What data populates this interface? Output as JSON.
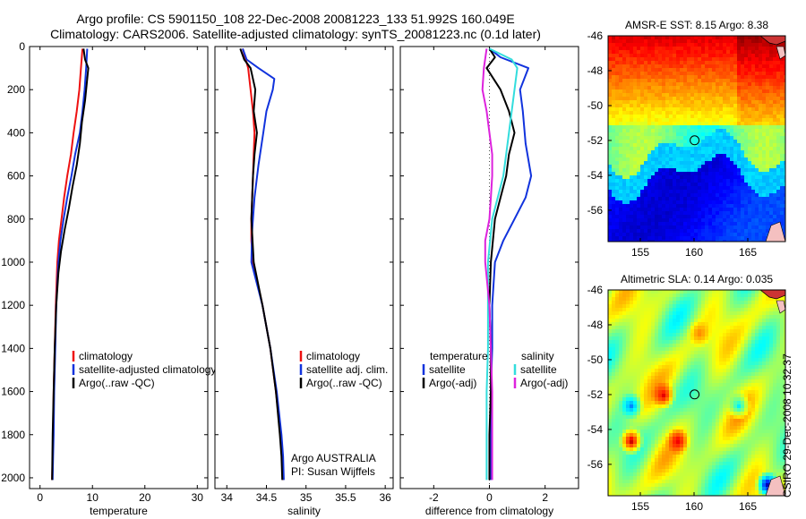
{
  "header": {
    "line1": "Argo profile: CS 5901150_108 22-Dec-2008 20081223_133 51.992S 160.049E",
    "line2": "Climatology: CARS2006. Satellite-adjusted climatology: synTS_20081223.nc (0.1d later)"
  },
  "credit": "CSIRO 29-Dec-2008 10:32:37",
  "colors": {
    "climatology": "#ee1111",
    "satellite": "#1133dd",
    "argo": "#000000",
    "salinity_satellite": "#33dddd",
    "salinity_argo": "#dd22dd"
  },
  "y_axis": {
    "range": [
      0,
      2050
    ],
    "ticks": [
      "0",
      "200",
      "400",
      "600",
      "800",
      "1000",
      "1200",
      "1400",
      "1600",
      "1800",
      "2000"
    ],
    "reversed": true
  },
  "chart_data": [
    {
      "type": "line",
      "id": "temperature",
      "xlabel": "temperature",
      "xlim": [
        -2,
        32
      ],
      "xticks": [
        {
          "v": 0,
          "label": "0"
        },
        {
          "v": 10,
          "label": "10"
        },
        {
          "v": 20,
          "label": "20"
        },
        {
          "v": 30,
          "label": "30"
        }
      ],
      "legend": [
        "climatology",
        "satellite-adjusted climatology",
        "Argo(..raw -QC)"
      ],
      "series": [
        {
          "name": "climatology",
          "color": "#ee1111",
          "x": [
            8.1,
            7.8,
            7.5,
            7.0,
            6.4,
            5.9,
            5.2,
            4.6,
            4.1,
            3.6,
            3.3,
            3.0,
            2.8,
            2.6,
            2.5,
            2.4,
            2.3,
            2.3
          ],
          "y": [
            10,
            100,
            200,
            300,
            400,
            500,
            600,
            700,
            800,
            900,
            1000,
            1200,
            1400,
            1600,
            1800,
            1900,
            2000,
            2010
          ]
        },
        {
          "name": "satellite-adjusted climatology",
          "color": "#1133dd",
          "x": [
            9.0,
            8.8,
            8.5,
            8.1,
            7.6,
            6.7,
            6.0,
            5.2,
            4.5,
            3.9,
            3.5,
            3.1,
            2.9,
            2.7,
            2.6,
            2.5,
            2.4,
            2.4
          ],
          "y": [
            10,
            100,
            200,
            300,
            400,
            500,
            600,
            700,
            800,
            900,
            1000,
            1200,
            1400,
            1600,
            1800,
            1900,
            2000,
            2010
          ]
        },
        {
          "name": "Argo(..raw -QC)",
          "color": "#000000",
          "x": [
            8.3,
            8.6,
            9.2,
            9.0,
            8.6,
            8.0,
            7.6,
            7.0,
            6.2,
            5.5,
            4.7,
            4.0,
            3.5,
            3.1,
            2.8,
            2.6,
            2.4,
            2.3,
            2.3
          ],
          "y": [
            10,
            60,
            100,
            150,
            250,
            350,
            450,
            550,
            650,
            750,
            850,
            950,
            1050,
            1200,
            1400,
            1600,
            1800,
            2000,
            2010
          ]
        }
      ]
    },
    {
      "type": "line",
      "id": "salinity",
      "xlabel": "salinity",
      "xlim": [
        33.85,
        36.1
      ],
      "xticks": [
        {
          "v": 34,
          "label": "34"
        },
        {
          "v": 34.5,
          "label": "34.5"
        },
        {
          "v": 35,
          "label": "35"
        },
        {
          "v": 35.5,
          "label": "35.5"
        },
        {
          "v": 36,
          "label": "36"
        }
      ],
      "legend": [
        "climatology",
        "satellite adj. clim.",
        "Argo(..raw -QC)"
      ],
      "annotation": [
        "Argo AUSTRALIA",
        "PI: Susan Wijffels"
      ],
      "series": [
        {
          "name": "climatology",
          "color": "#ee1111",
          "x": [
            34.2,
            34.27,
            34.3,
            34.33,
            34.35,
            34.34,
            34.33,
            34.32,
            34.31,
            34.31,
            34.33,
            34.45,
            34.55,
            34.62,
            34.68,
            34.7,
            34.71
          ],
          "y": [
            10,
            100,
            200,
            300,
            400,
            500,
            600,
            700,
            800,
            900,
            1000,
            1200,
            1400,
            1600,
            1800,
            1900,
            2010
          ]
        },
        {
          "name": "satellite adj. clim.",
          "color": "#1133dd",
          "x": [
            34.2,
            34.25,
            34.4,
            34.6,
            34.58,
            34.5,
            34.46,
            34.4,
            34.35,
            34.32,
            34.31,
            34.45,
            34.55,
            34.63,
            34.69,
            34.71,
            34.72
          ],
          "y": [
            10,
            60,
            100,
            150,
            200,
            300,
            400,
            550,
            700,
            850,
            1000,
            1200,
            1400,
            1600,
            1800,
            1900,
            2010
          ]
        },
        {
          "name": "Argo(..raw -QC)",
          "color": "#000000",
          "x": [
            34.17,
            34.22,
            34.3,
            34.36,
            34.34,
            34.38,
            34.35,
            34.33,
            34.32,
            34.31,
            34.34,
            34.45,
            34.55,
            34.62,
            34.67,
            34.69,
            34.7
          ],
          "y": [
            10,
            60,
            100,
            200,
            300,
            400,
            500,
            600,
            700,
            800,
            1000,
            1200,
            1400,
            1600,
            1800,
            1900,
            2010
          ]
        }
      ]
    },
    {
      "type": "line",
      "id": "difference",
      "xlabel": "difference from climatology",
      "xlim": [
        -3.2,
        3.2
      ],
      "xticks": [
        {
          "v": -2,
          "label": "-2"
        },
        {
          "v": 0,
          "label": "0"
        },
        {
          "v": 2,
          "label": "2"
        }
      ],
      "legend_headers": [
        "temperature",
        "salinity"
      ],
      "legend": [
        "satellite",
        "Argo(-adj)",
        "satellite",
        "Argo(-adj)"
      ],
      "series": [
        {
          "name": "temperature satellite",
          "color": "#1133dd",
          "x": [
            0.0,
            0.4,
            1.4,
            1.1,
            1.2,
            1.3,
            1.5,
            1.3,
            0.9,
            0.5,
            0.2,
            0.1,
            0.1,
            0.05,
            0.05,
            0.05
          ],
          "y": [
            10,
            50,
            100,
            200,
            300,
            450,
            600,
            700,
            800,
            900,
            1000,
            1200,
            1400,
            1600,
            1800,
            2010
          ]
        },
        {
          "name": "temperature Argo(-adj)",
          "color": "#000000",
          "x": [
            0.0,
            0.2,
            -0.1,
            0.4,
            0.7,
            0.9,
            0.7,
            0.6,
            0.4,
            0.2,
            0.05,
            0.0,
            0.05,
            0.05,
            0.0,
            0.0
          ],
          "y": [
            10,
            50,
            100,
            200,
            300,
            400,
            500,
            600,
            700,
            800,
            1000,
            1200,
            1400,
            1600,
            1800,
            2010
          ]
        },
        {
          "name": "salinity satellite",
          "color": "#33dddd",
          "x": [
            0.0,
            0.8,
            1.0,
            0.9,
            0.8,
            0.7,
            0.6,
            0.5,
            0.3,
            0.1,
            -0.05,
            -0.05,
            -0.05,
            -0.1,
            -0.1,
            -0.1
          ],
          "y": [
            10,
            60,
            100,
            200,
            300,
            400,
            500,
            600,
            700,
            800,
            1000,
            1200,
            1400,
            1600,
            1800,
            2010
          ]
        },
        {
          "name": "salinity Argo(-adj)",
          "color": "#dd22dd",
          "x": [
            -0.1,
            -0.2,
            -0.25,
            -0.1,
            0.0,
            0.1,
            0.1,
            0.05,
            0.0,
            -0.15,
            -0.15,
            0.0,
            0.05,
            0.1,
            0.1,
            0.1
          ],
          "y": [
            10,
            100,
            200,
            300,
            400,
            500,
            600,
            700,
            800,
            900,
            1000,
            1200,
            1400,
            1600,
            1800,
            2010
          ]
        }
      ]
    }
  ],
  "maps": [
    {
      "id": "sst",
      "title": "AMSR-E SST: 8.15 Argo: 8.38",
      "xticks": [
        {
          "v": 155,
          "label": "155"
        },
        {
          "v": 160,
          "label": "160"
        },
        {
          "v": 165,
          "label": "165"
        }
      ],
      "yticks": [
        {
          "v": -46,
          "label": "-46"
        },
        {
          "v": -48,
          "label": "-48"
        },
        {
          "v": -50,
          "label": "-50"
        },
        {
          "v": -52,
          "label": "-52"
        },
        {
          "v": -54,
          "label": "-54"
        },
        {
          "v": -56,
          "label": "-56"
        }
      ],
      "lon_range": [
        152,
        168.5
      ],
      "lat_range": [
        -57.8,
        -46
      ],
      "marker": {
        "lon": 160.049,
        "lat": -51.992
      }
    },
    {
      "id": "sla",
      "title": "Altimetric SLA: 0.14 Argo: 0.035",
      "xticks": [
        {
          "v": 155,
          "label": "155"
        },
        {
          "v": 160,
          "label": "160"
        },
        {
          "v": 165,
          "label": "165"
        }
      ],
      "yticks": [
        {
          "v": -46,
          "label": "-46"
        },
        {
          "v": -48,
          "label": "-48"
        },
        {
          "v": -50,
          "label": "-50"
        },
        {
          "v": -52,
          "label": "-52"
        },
        {
          "v": -54,
          "label": "-54"
        },
        {
          "v": -56,
          "label": "-56"
        }
      ],
      "lon_range": [
        152,
        168.5
      ],
      "lat_range": [
        -57.8,
        -46
      ],
      "marker": {
        "lon": 160.049,
        "lat": -51.992
      }
    }
  ]
}
